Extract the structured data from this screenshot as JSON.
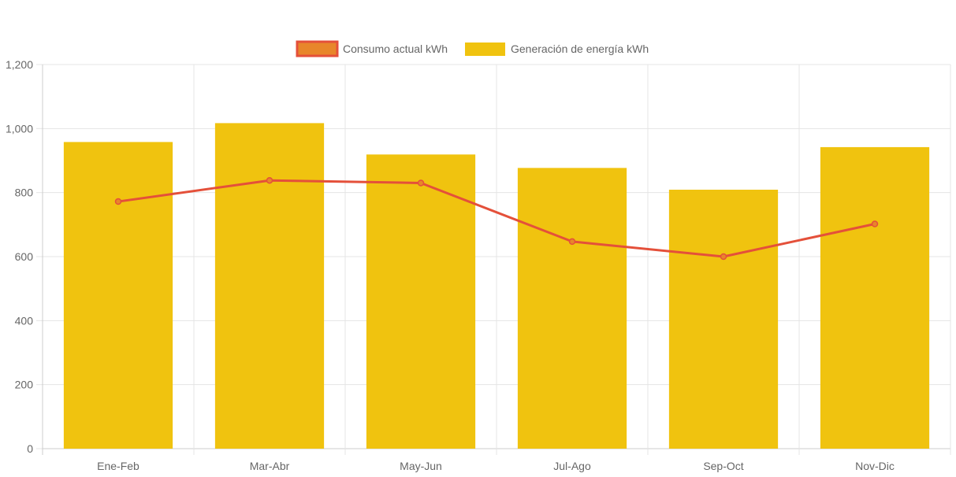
{
  "chart_data": {
    "type": "bar",
    "categories": [
      "Ene-Feb",
      "Mar-Abr",
      "May-Jun",
      "Jul-Ago",
      "Sep-Oct",
      "Nov-Dic"
    ],
    "series": [
      {
        "name": "Consumo actual kWh",
        "type": "line",
        "values": [
          772,
          838,
          830,
          647,
          600,
          702
        ]
      },
      {
        "name": "Generación de energía kWh",
        "type": "bar",
        "values": [
          958,
          1017,
          919,
          877,
          809,
          942
        ]
      }
    ],
    "ylim": [
      0,
      1200
    ],
    "yticks": [
      "0",
      "200",
      "400",
      "600",
      "800",
      "1,000",
      "1,200"
    ],
    "ytick_values": [
      0,
      200,
      400,
      600,
      800,
      1000,
      1200
    ],
    "legend_position": "top",
    "grid": true,
    "colors": {
      "bar": "#f0c30f",
      "line": "#e4503a",
      "line_legend_fill": "#e8862a",
      "grid": "#e5e5e5",
      "axis": "#cccccc"
    }
  }
}
